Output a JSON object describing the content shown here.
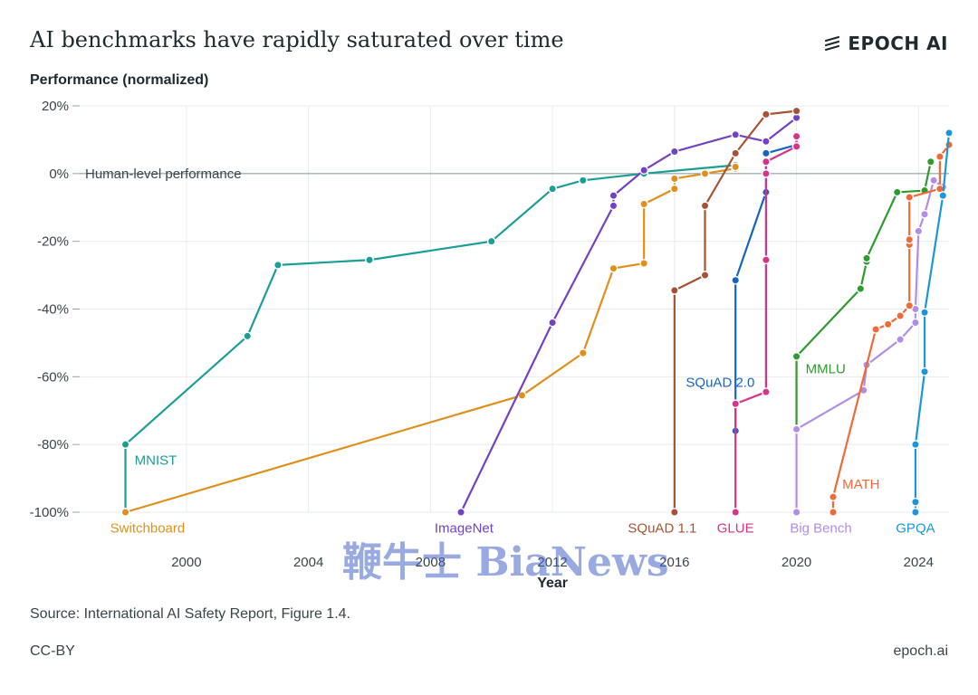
{
  "header": {
    "title": "AI benchmarks have rapidly saturated over time",
    "brand": "EPOCH AI",
    "brand_icon": "epoch-logo-icon"
  },
  "footer": {
    "source": "Source: International AI Safety Report, Figure 1.4.",
    "license": "CC-BY",
    "site": "epoch.ai"
  },
  "watermark": "鞭牛士 BiaNews",
  "chart_data": {
    "type": "line",
    "title": "AI benchmarks have rapidly saturated over time",
    "xlabel": "Year",
    "ylabel": "Performance (normalized)",
    "xlim": [
      1996.5,
      2025.0
    ],
    "ylim": [
      -100,
      20
    ],
    "xticks": [
      2000,
      2004,
      2008,
      2012,
      2016,
      2020,
      2024
    ],
    "yticks": [
      20,
      0,
      -20,
      -40,
      -60,
      -80,
      -100
    ],
    "ytick_suffix": "%",
    "grid": true,
    "legend": "none (series labelled directly)",
    "reference_line": {
      "y": 0,
      "label": "Human-level performance"
    },
    "series": [
      {
        "name": "MNIST",
        "color": "#1a9e96",
        "x": [
          1998.0,
          1998.0,
          2002.0,
          2003.0,
          2006.0,
          2010.0,
          2012.0,
          2013.0,
          2015.0,
          2018.0
        ],
        "y": [
          -100,
          -80,
          -48,
          -27,
          -25.5,
          -20,
          -4.5,
          -2,
          0,
          2.5
        ]
      },
      {
        "name": "Switchboard",
        "color": "#e0901a",
        "x": [
          1998.0,
          2011.0,
          2013.0,
          2014.0,
          2015.0,
          2015.0,
          2016.0,
          2016.0,
          2017.0,
          2018.0,
          2018.0
        ],
        "y": [
          -100,
          -65.5,
          -53,
          -28,
          -26.5,
          -9,
          -4.5,
          -1.5,
          0,
          1.5,
          2
        ]
      },
      {
        "name": "ImageNet",
        "color": "#7342c2",
        "x": [
          2009.0,
          2012.0,
          2014.0,
          2014.0,
          2015.0,
          2016.0,
          2018.0,
          2019.0,
          2020.0
        ],
        "y": [
          -100,
          -44,
          -9.5,
          -6.5,
          1,
          6.5,
          11.5,
          9.5,
          16.5
        ]
      },
      {
        "name": "SQuAD 1.1",
        "color": "#a85232",
        "x": [
          2016.0,
          2016.0,
          2017.0,
          2017.0,
          2018.0,
          2019.0,
          2020.0
        ],
        "y": [
          -100,
          -34.5,
          -30,
          -9.5,
          6,
          17.5,
          18.5
        ]
      },
      {
        "name": "SQuAD 2.0",
        "color": "#1565c0",
        "x": [
          2018.0,
          2018.0,
          2019.0,
          2019.0,
          2020.0
        ],
        "y": [
          -76,
          -31.5,
          -5.5,
          6,
          8.5
        ]
      },
      {
        "name": "GLUE",
        "color": "#d6338a",
        "x": [
          2018.0,
          2018.0,
          2019.0,
          2019.0,
          2019.0,
          2019.0,
          2020.0,
          2020.0
        ],
        "y": [
          -100,
          -68,
          -64.5,
          -25.5,
          0,
          3.5,
          8,
          11
        ]
      },
      {
        "name": "MMLU",
        "color": "#2e9b2e",
        "x": [
          2020.0,
          2020.0,
          2022.1,
          2022.3,
          2022.3,
          2023.3,
          2024.2,
          2024.4
        ],
        "y": [
          -75.5,
          -54,
          -34,
          -26,
          -25,
          -5.5,
          -5,
          3.5
        ]
      },
      {
        "name": "Big Bench",
        "color": "#b08de8",
        "x": [
          2020.0,
          2020.0,
          2022.2,
          2022.3,
          2023.4,
          2023.9,
          2023.9,
          2024.0,
          2024.2,
          2024.5,
          2024.8
        ],
        "y": [
          -100,
          -75.5,
          -64,
          -56.5,
          -49,
          -44,
          -40,
          -17,
          -12,
          -2,
          -4
        ]
      },
      {
        "name": "MATH",
        "color": "#ef6a36",
        "x": [
          2021.2,
          2021.2,
          2022.6,
          2023.0,
          2023.4,
          2023.7,
          2023.7,
          2023.7,
          2023.7,
          2024.7,
          2024.7,
          2025.0
        ],
        "y": [
          -100,
          -95.5,
          -46,
          -44.5,
          -42,
          -39,
          -21,
          -19.5,
          -7,
          -4.5,
          5,
          8.5
        ]
      },
      {
        "name": "GPQA",
        "color": "#1b96d8",
        "x": [
          2023.9,
          2023.9,
          2023.9,
          2024.2,
          2024.2,
          2024.8,
          2025.0
        ],
        "y": [
          -100,
          -97,
          -80,
          -58.5,
          -41,
          -6.5,
          12
        ]
      }
    ]
  }
}
